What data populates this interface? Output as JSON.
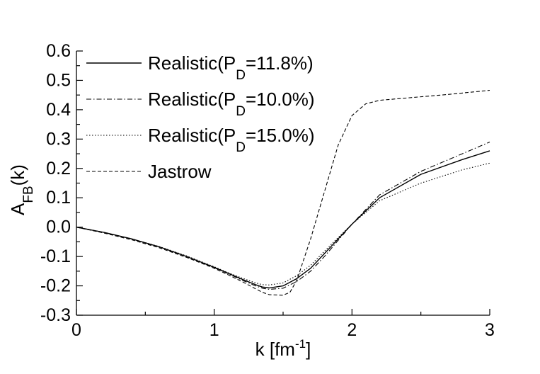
{
  "chart_data": {
    "type": "line",
    "xlabel": "k [fm",
    "xlabel_sup": "-1",
    "xlabel_close": "]",
    "ylabel": "A",
    "ylabel_sub": "FB",
    "ylabel_tail": "(k)",
    "xlim": [
      0,
      3
    ],
    "ylim": [
      -0.3,
      0.6
    ],
    "x_ticks": [
      0,
      1,
      2,
      3
    ],
    "x_tick_labels": [
      "0",
      "1",
      "2",
      "3"
    ],
    "y_ticks": [
      -0.3,
      -0.2,
      -0.1,
      0.0,
      0.1,
      0.2,
      0.3,
      0.4,
      0.5,
      0.6
    ],
    "y_tick_labels": [
      "-0.3",
      "-0.2",
      "-0.1",
      "0.0",
      "0.1",
      "0.2",
      "0.3",
      "0.4",
      "0.5",
      "0.6"
    ],
    "grid": false,
    "legend_position": "top-left",
    "series": [
      {
        "name": "Realistic(P_D=11.8%)",
        "legend_main": "Realistic(P",
        "legend_sub": "D",
        "legend_tail": "=11.8%)",
        "dash": "solid",
        "x": [
          0,
          0.2,
          0.4,
          0.6,
          0.8,
          1.0,
          1.1,
          1.2,
          1.3,
          1.35,
          1.4,
          1.5,
          1.6,
          1.7,
          1.8,
          1.9,
          2.0,
          2.2,
          2.5,
          2.8,
          3.0
        ],
        "y": [
          0.0,
          -0.018,
          -0.04,
          -0.067,
          -0.1,
          -0.137,
          -0.157,
          -0.177,
          -0.196,
          -0.204,
          -0.207,
          -0.2,
          -0.175,
          -0.14,
          -0.09,
          -0.04,
          0.01,
          0.1,
          0.18,
          0.23,
          0.26
        ]
      },
      {
        "name": "Realistic(P_D=10.0%)",
        "legend_main": "Realistic(P",
        "legend_sub": "D",
        "legend_tail": "=10.0%)",
        "dash": "dashdot",
        "x": [
          0,
          0.2,
          0.4,
          0.6,
          0.8,
          1.0,
          1.1,
          1.2,
          1.3,
          1.35,
          1.4,
          1.5,
          1.6,
          1.7,
          1.8,
          1.9,
          2.0,
          2.2,
          2.5,
          2.8,
          3.0
        ],
        "y": [
          0.0,
          -0.018,
          -0.04,
          -0.067,
          -0.1,
          -0.138,
          -0.158,
          -0.18,
          -0.2,
          -0.208,
          -0.212,
          -0.208,
          -0.185,
          -0.15,
          -0.1,
          -0.045,
          0.01,
          0.11,
          0.19,
          0.25,
          0.29
        ]
      },
      {
        "name": "Realistic(P_D=15.0%)",
        "legend_main": "Realistic(P",
        "legend_sub": "D",
        "legend_tail": "=15.0%)",
        "dash": "dotted",
        "x": [
          0,
          0.2,
          0.4,
          0.6,
          0.8,
          1.0,
          1.1,
          1.2,
          1.3,
          1.35,
          1.4,
          1.5,
          1.6,
          1.7,
          1.8,
          1.9,
          2.0,
          2.2,
          2.5,
          2.8,
          3.0
        ],
        "y": [
          0.0,
          -0.018,
          -0.04,
          -0.066,
          -0.098,
          -0.135,
          -0.155,
          -0.173,
          -0.19,
          -0.196,
          -0.197,
          -0.19,
          -0.165,
          -0.13,
          -0.082,
          -0.035,
          0.01,
          0.09,
          0.15,
          0.195,
          0.218
        ]
      },
      {
        "name": "Jastrow",
        "legend_main": "Jastrow",
        "legend_sub": "",
        "legend_tail": "",
        "dash": "dashed",
        "x": [
          0,
          0.2,
          0.4,
          0.6,
          0.8,
          1.0,
          1.1,
          1.2,
          1.3,
          1.35,
          1.4,
          1.5,
          1.55,
          1.6,
          1.7,
          1.8,
          1.85,
          1.9,
          2.0,
          2.1,
          2.2,
          2.4,
          2.7,
          3.0
        ],
        "y": [
          0.0,
          -0.02,
          -0.043,
          -0.07,
          -0.103,
          -0.14,
          -0.162,
          -0.185,
          -0.21,
          -0.222,
          -0.23,
          -0.232,
          -0.222,
          -0.18,
          -0.04,
          0.12,
          0.2,
          0.28,
          0.38,
          0.42,
          0.432,
          0.44,
          0.452,
          0.466
        ]
      }
    ]
  }
}
